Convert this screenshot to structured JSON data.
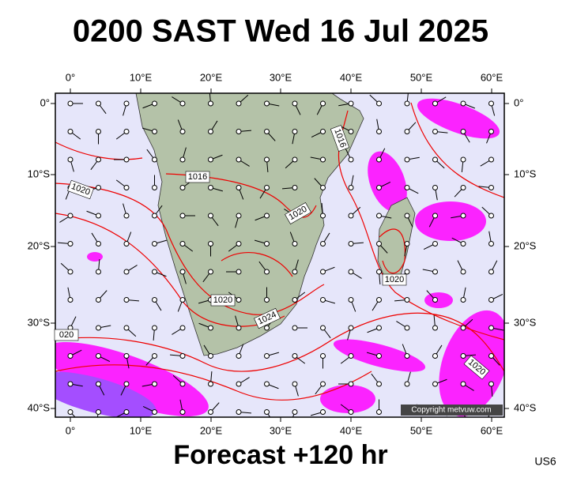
{
  "title": "0200 SAST Wed 16 Jul 2025",
  "footer": "Forecast +120 hr",
  "corner_code": "US6",
  "copyright": "Copyright metvuw.com",
  "longitude_labels": [
    "0°",
    "10°E",
    "20°E",
    "30°E",
    "40°E",
    "50°E",
    "60°E"
  ],
  "latitude_labels": [
    "0°",
    "10°S",
    "20°S",
    "30°S",
    "40°S"
  ],
  "isobar_labels": [
    "1016",
    "1020",
    "1016",
    "1020",
    "1020",
    "1020",
    "1024",
    "020",
    "1020"
  ]
}
